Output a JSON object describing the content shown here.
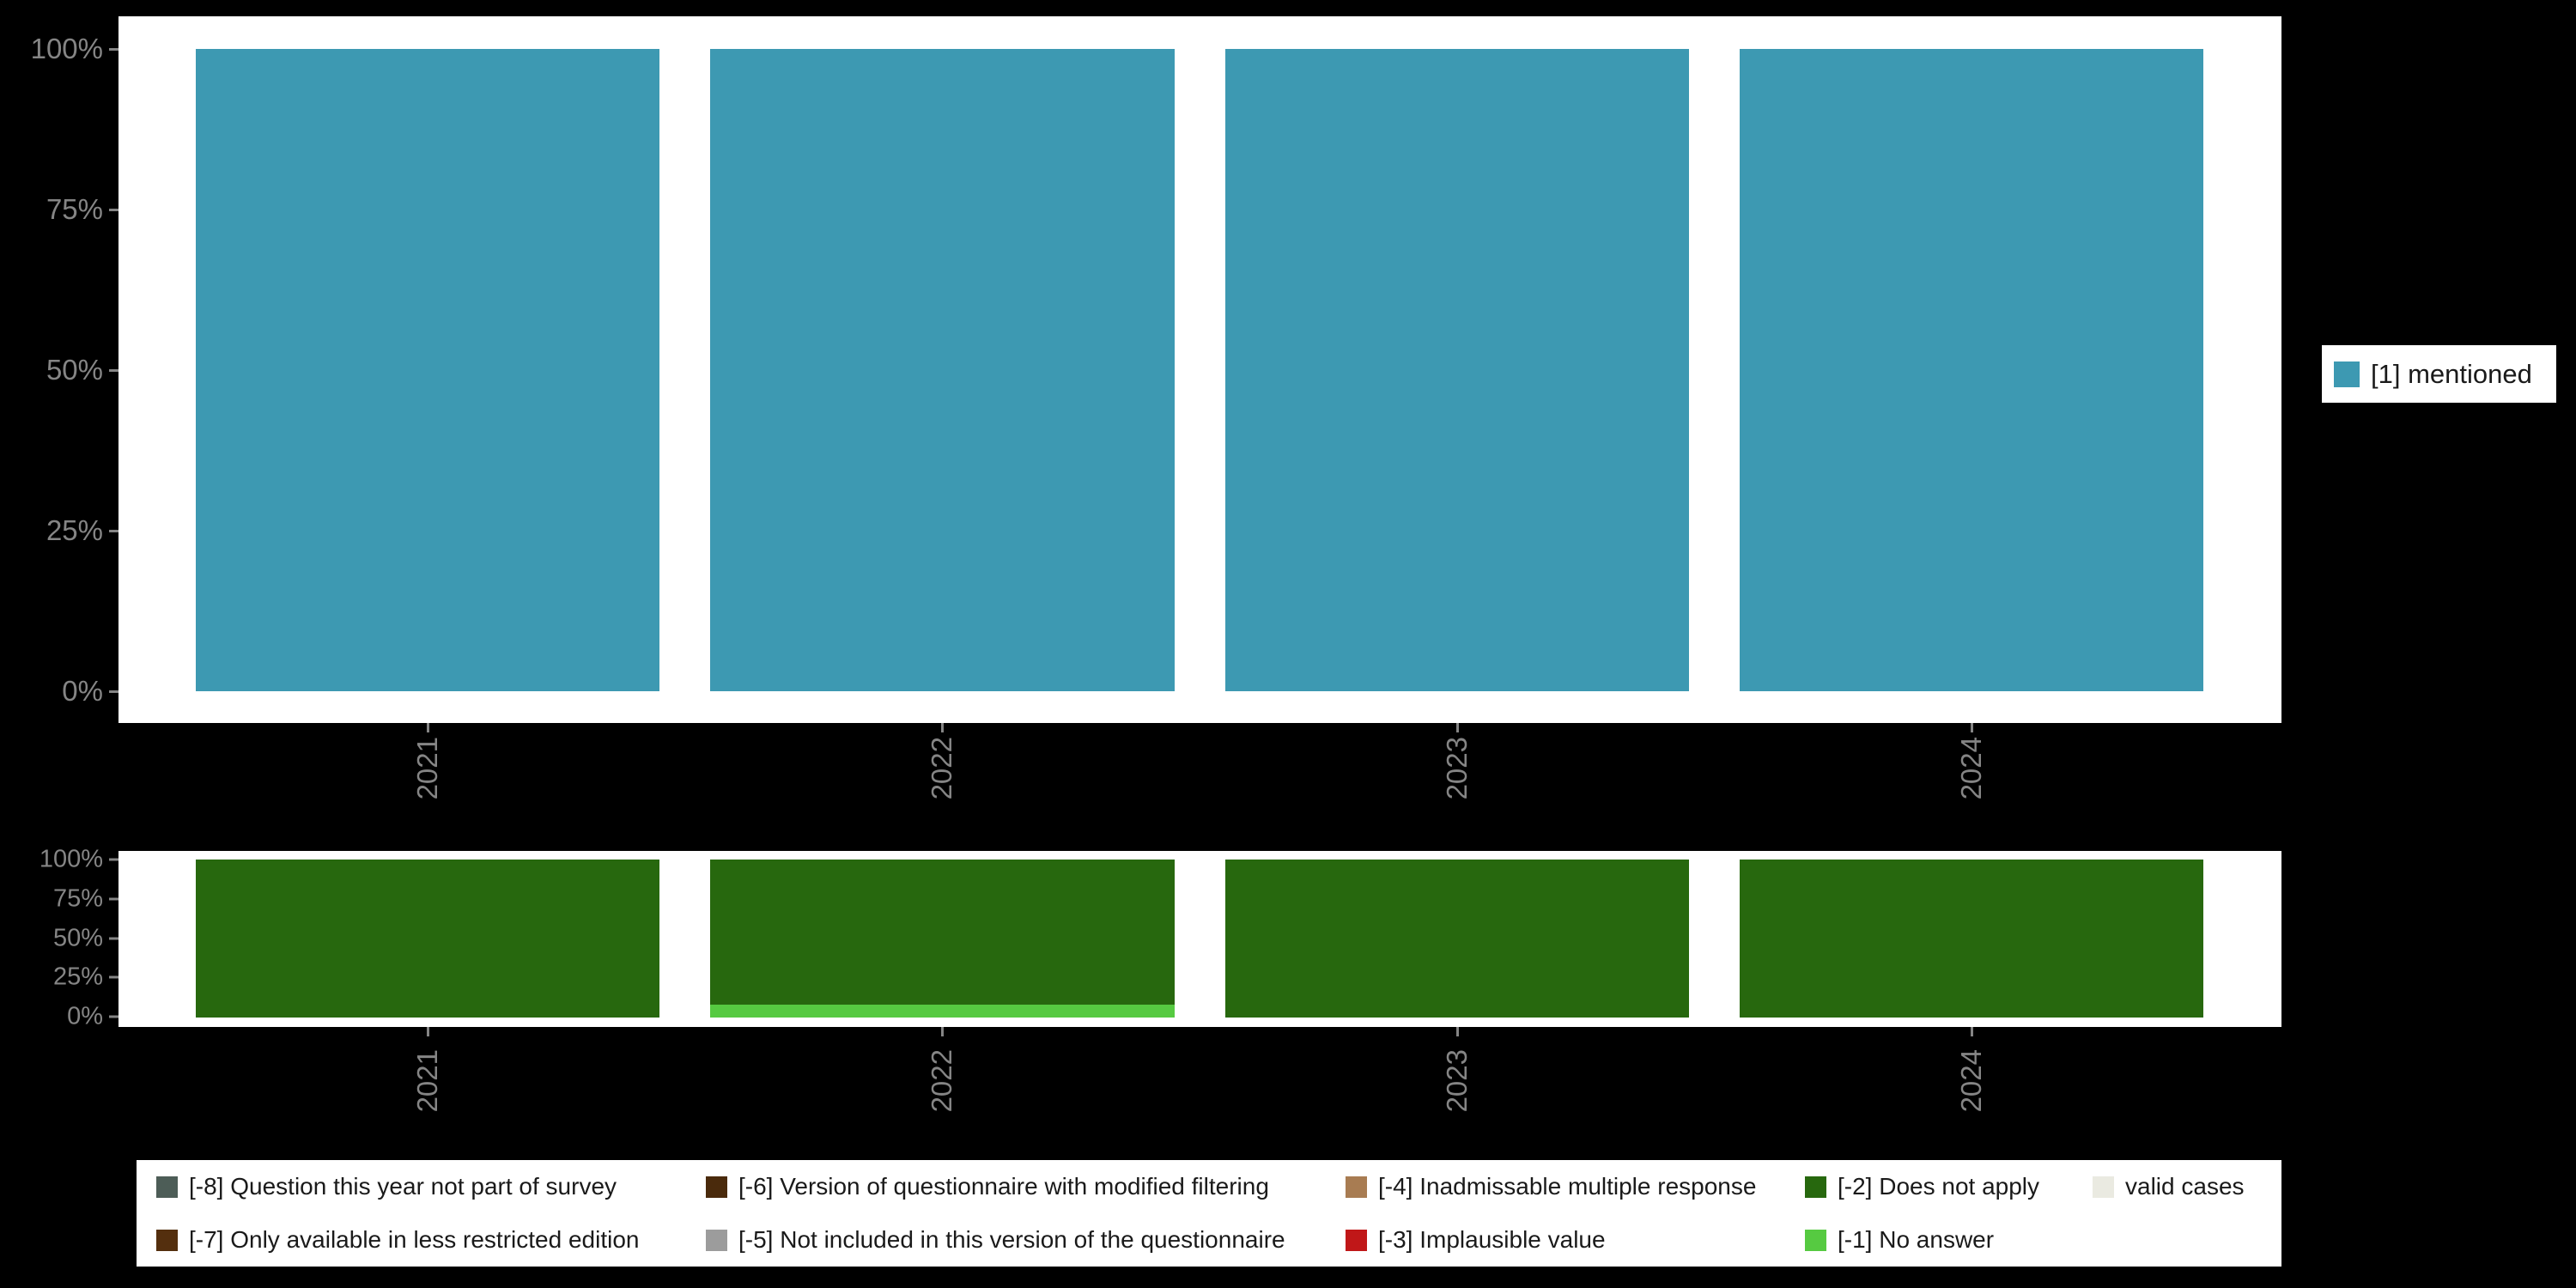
{
  "colors": {
    "background": "#000000",
    "panel_background": "#ffffff",
    "axis_text": "#858585",
    "legend_text": "#1a1a1a",
    "legend_background": "#ffffff"
  },
  "chart_data": [
    {
      "type": "bar",
      "stacked": true,
      "percent": true,
      "categories": [
        "2021",
        "2022",
        "2023",
        "2024"
      ],
      "series": [
        {
          "name": "[1] mentioned",
          "color": "#3d99b2",
          "values": [
            100,
            100,
            100,
            100
          ]
        }
      ],
      "title": "",
      "xlabel": "",
      "ylabel": "",
      "ylim": [
        0,
        100
      ],
      "yticks": [
        "0%",
        "25%",
        "50%",
        "75%",
        "100%"
      ],
      "grid": false,
      "legend_position": "right"
    },
    {
      "type": "bar",
      "stacked": true,
      "percent": true,
      "categories": [
        "2021",
        "2022",
        "2023",
        "2024"
      ],
      "series": [
        {
          "name": "[-2] Does not apply",
          "color": "#27680e",
          "values": [
            100,
            92,
            100,
            100
          ]
        },
        {
          "name": "[-1] No answer",
          "color": "#56ca41",
          "values": [
            0,
            8,
            0,
            0
          ]
        }
      ],
      "title": "",
      "xlabel": "",
      "ylabel": "",
      "ylim": [
        0,
        100
      ],
      "yticks": [
        "0%",
        "25%",
        "50%",
        "75%",
        "100%"
      ],
      "grid": false,
      "legend_position": "bottom"
    }
  ],
  "legend_right": {
    "items": [
      {
        "label": "[1] mentioned",
        "color": "#3d99b2"
      }
    ]
  },
  "legend_bottom": {
    "items": [
      {
        "label": "[-8] Question this year not part of survey",
        "color": "#4d5d57"
      },
      {
        "label": "[-7] Only available in less restricted edition",
        "color": "#542f0e"
      },
      {
        "label": "[-6] Version of questionnaire with modified filtering",
        "color": "#4a2a0c"
      },
      {
        "label": "[-5] Not included in this version of the questionnaire",
        "color": "#9c9c9c"
      },
      {
        "label": "[-4] Inadmissable multiple response",
        "color": "#a87c52"
      },
      {
        "label": "[-3] Implausible value",
        "color": "#c01718"
      },
      {
        "label": "[-2] Does not apply",
        "color": "#27680e"
      },
      {
        "label": "[-1] No answer",
        "color": "#56ca41"
      },
      {
        "label": "valid cases",
        "color": "#eaeae1"
      }
    ]
  }
}
